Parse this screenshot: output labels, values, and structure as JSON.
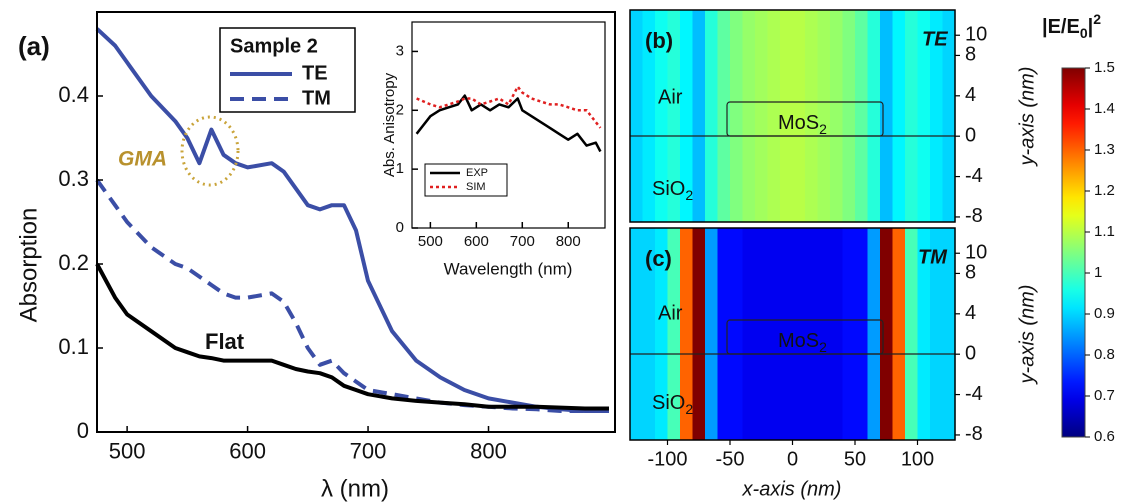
{
  "chart_data": [
    {
      "type": "line",
      "panel_label": "(a)",
      "xlabel": "λ (nm)",
      "ylabel": "Absorption",
      "legend_title": "Sample 2",
      "annotation": "GMA",
      "xlim": [
        475,
        905
      ],
      "ylim": [
        0,
        0.5
      ],
      "xticks": [
        500,
        600,
        700,
        800
      ],
      "yticks": [
        0,
        0.1,
        0.2,
        0.3,
        0.4
      ],
      "x": [
        475,
        490,
        500,
        520,
        540,
        550,
        560,
        570,
        580,
        590,
        600,
        620,
        630,
        640,
        650,
        660,
        670,
        680,
        690,
        700,
        720,
        740,
        760,
        780,
        800,
        820,
        840,
        860,
        880,
        900
      ],
      "series": [
        {
          "name": "TE",
          "color": "#3b4ea6",
          "dash": "solid",
          "values": [
            0.48,
            0.46,
            0.44,
            0.4,
            0.37,
            0.35,
            0.32,
            0.36,
            0.33,
            0.32,
            0.315,
            0.32,
            0.31,
            0.29,
            0.27,
            0.265,
            0.27,
            0.27,
            0.24,
            0.18,
            0.12,
            0.085,
            0.065,
            0.05,
            0.04,
            0.035,
            0.03,
            0.027,
            0.025,
            0.025
          ]
        },
        {
          "name": "TM",
          "color": "#3b4ea6",
          "dash": "dashed",
          "values": [
            0.3,
            0.27,
            0.25,
            0.22,
            0.2,
            0.195,
            0.185,
            0.175,
            0.165,
            0.16,
            0.16,
            0.165,
            0.155,
            0.13,
            0.1,
            0.08,
            0.085,
            0.07,
            0.06,
            0.05,
            0.045,
            0.04,
            0.035,
            0.032,
            0.03,
            0.028,
            0.027,
            0.025,
            0.025,
            0.025
          ]
        },
        {
          "name": "Flat",
          "color": "#000000",
          "dash": "solid",
          "values": [
            0.2,
            0.16,
            0.14,
            0.12,
            0.1,
            0.095,
            0.09,
            0.088,
            0.085,
            0.085,
            0.085,
            0.085,
            0.08,
            0.075,
            0.072,
            0.07,
            0.065,
            0.055,
            0.05,
            0.045,
            0.04,
            0.037,
            0.035,
            0.033,
            0.03,
            0.03,
            0.03,
            0.029,
            0.028,
            0.028
          ]
        }
      ]
    },
    {
      "type": "line",
      "xlabel": "Wavelength (nm)",
      "ylabel": "Abs. Anisotropy",
      "xlim": [
        460,
        880
      ],
      "ylim": [
        0,
        3.5
      ],
      "xticks": [
        500,
        600,
        700,
        800
      ],
      "yticks": [
        0,
        1,
        2,
        3
      ],
      "x": [
        470,
        500,
        520,
        540,
        560,
        575,
        590,
        610,
        630,
        650,
        670,
        690,
        700,
        720,
        740,
        760,
        780,
        800,
        820,
        840,
        860,
        870
      ],
      "series": [
        {
          "name": "EXP",
          "color": "#000000",
          "dash": "solid",
          "values": [
            1.6,
            1.9,
            2.0,
            2.05,
            2.1,
            2.25,
            2.0,
            2.1,
            2.0,
            2.1,
            2.05,
            2.2,
            2.0,
            1.9,
            1.8,
            1.7,
            1.6,
            1.5,
            1.6,
            1.4,
            1.45,
            1.3
          ]
        },
        {
          "name": "SIM",
          "color": "#e02020",
          "dash": "dotted",
          "values": [
            2.2,
            2.1,
            2.05,
            2.1,
            2.15,
            2.2,
            2.2,
            2.1,
            2.15,
            2.2,
            2.1,
            2.4,
            2.3,
            2.2,
            2.15,
            2.1,
            2.1,
            2.05,
            2.0,
            2.0,
            1.8,
            1.7
          ]
        }
      ]
    },
    {
      "type": "heatmap",
      "panel_label": "(b)",
      "title": "TE",
      "annotation": "Air",
      "film_label": [
        "MoS",
        "2"
      ],
      "substrate_label": [
        "SiO",
        "2"
      ],
      "ylabel": "y-axis (nm)",
      "xlim": [
        -130,
        130
      ],
      "ylim": [
        -8.5,
        12.5
      ],
      "yticks": [
        10,
        8,
        4,
        0,
        -4,
        -8
      ],
      "x": [
        -125,
        -115,
        -105,
        -95,
        -85,
        -75,
        -65,
        -55,
        -45,
        -35,
        -25,
        -15,
        -5,
        5,
        15,
        25,
        35,
        45,
        55,
        65,
        75,
        85,
        95,
        105,
        115,
        125
      ],
      "values": [
        0.9,
        0.92,
        0.95,
        0.97,
        0.93,
        0.88,
        0.97,
        1.02,
        1.05,
        1.07,
        1.08,
        1.09,
        1.1,
        1.1,
        1.09,
        1.08,
        1.07,
        1.05,
        1.02,
        0.97,
        0.88,
        0.93,
        0.97,
        0.95,
        0.92,
        0.9
      ]
    },
    {
      "type": "heatmap",
      "panel_label": "(c)",
      "title": "TM",
      "annotation": "Air",
      "film_label": [
        "MoS",
        "2"
      ],
      "substrate_label": [
        "SiO",
        "2"
      ],
      "ylabel": "y-axis (nm)",
      "xlabel": "x-axis (nm)",
      "xlim": [
        -130,
        130
      ],
      "ylim": [
        -8.5,
        12.5
      ],
      "yticks": [
        10,
        8,
        4,
        0,
        -4,
        -8
      ],
      "xticks": [
        -100,
        -50,
        0,
        50,
        100
      ],
      "x": [
        -125,
        -115,
        -105,
        -95,
        -85,
        -75,
        -65,
        -55,
        -45,
        -35,
        -25,
        -15,
        -5,
        5,
        15,
        25,
        35,
        45,
        55,
        65,
        75,
        85,
        95,
        105,
        115,
        125
      ],
      "values": [
        0.9,
        0.9,
        0.92,
        1.0,
        1.3,
        1.5,
        0.85,
        0.72,
        0.72,
        0.7,
        0.7,
        0.7,
        0.7,
        0.7,
        0.7,
        0.7,
        0.7,
        0.72,
        0.72,
        0.85,
        1.5,
        1.3,
        1.0,
        0.92,
        0.9,
        0.9
      ]
    }
  ],
  "colorbar": {
    "title_parts": [
      "|E/E",
      "0",
      "|",
      "2"
    ],
    "lim": [
      0.6,
      1.5
    ],
    "ticks": [
      0.6,
      0.7,
      0.8,
      0.9,
      1,
      1.1,
      1.2,
      1.3,
      1.4,
      1.5
    ]
  }
}
